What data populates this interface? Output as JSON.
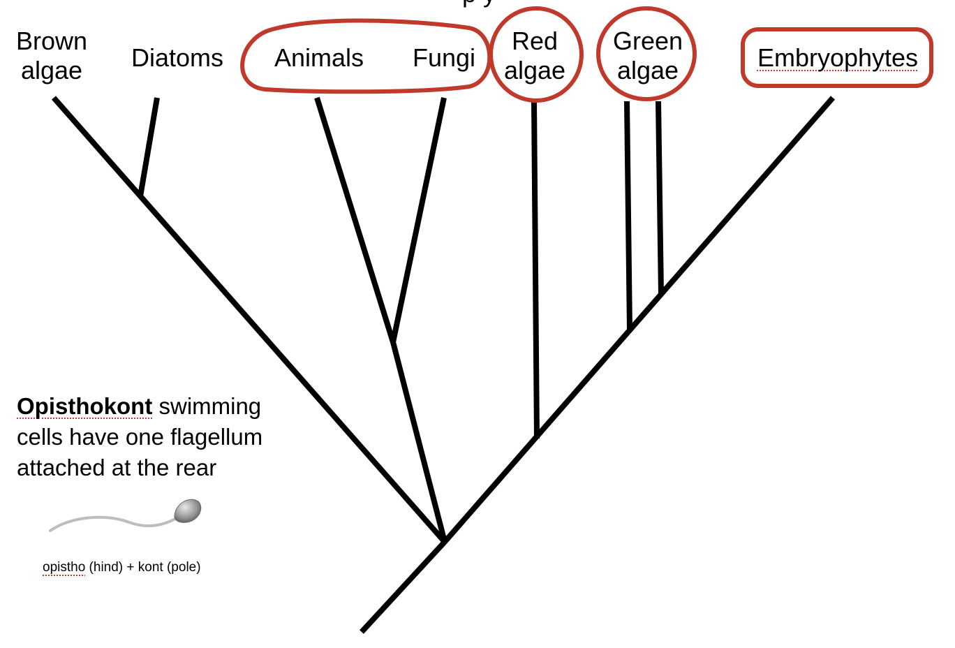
{
  "diagram": {
    "top_cut_text": "p y",
    "taxa": {
      "brown_algae": [
        "Brown",
        "algae"
      ],
      "diatoms": "Diatoms",
      "animals": "Animals",
      "fungi": "Fungi",
      "red_algae": [
        "Red",
        "algae"
      ],
      "green_algae": [
        "Green",
        "algae"
      ],
      "embryophytes": "Embryophytes"
    },
    "caption": {
      "term": "Opisthokont",
      "rest_line1": " swimming",
      "line2": "cells have one flagellum",
      "line3": "attached at the rear"
    },
    "etymology": {
      "part1": "opistho",
      "part2": " (hind) + kont (pole)"
    },
    "highlight_color": "#c0392b",
    "line_color": "#000000",
    "cell_color": "#9a9a9a"
  }
}
